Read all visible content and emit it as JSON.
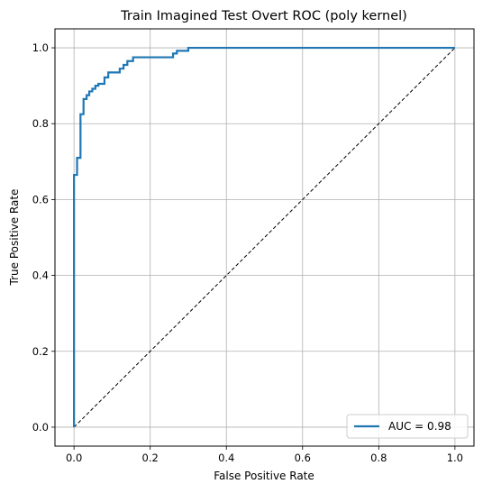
{
  "chart_data": {
    "type": "line",
    "title": "Train Imagined Test Overt ROC (poly kernel)",
    "xlabel": "False Positive Rate",
    "ylabel": "True Positive Rate",
    "xlim": [
      -0.05,
      1.05
    ],
    "ylim": [
      -0.05,
      1.05
    ],
    "xticks": [
      0.0,
      0.2,
      0.4,
      0.6,
      0.8,
      1.0
    ],
    "yticks": [
      0.0,
      0.2,
      0.4,
      0.6,
      0.8,
      1.0
    ],
    "xtick_labels": [
      "0.0",
      "0.2",
      "0.4",
      "0.6",
      "0.8",
      "1.0"
    ],
    "ytick_labels": [
      "0.0",
      "0.2",
      "0.4",
      "0.6",
      "0.8",
      "1.0"
    ],
    "grid": true,
    "legend_position": "bottom-right",
    "series": [
      {
        "name": "AUC = 0.98",
        "color": "#1f77b4",
        "style": "solid",
        "x": [
          0.0,
          0.0,
          0.008,
          0.008,
          0.017,
          0.017,
          0.025,
          0.025,
          0.033,
          0.033,
          0.04,
          0.04,
          0.048,
          0.048,
          0.056,
          0.056,
          0.064,
          0.064,
          0.08,
          0.08,
          0.09,
          0.09,
          0.12,
          0.12,
          0.13,
          0.13,
          0.14,
          0.14,
          0.155,
          0.155,
          0.26,
          0.26,
          0.27,
          0.27,
          0.3,
          0.3,
          1.0
        ],
        "y": [
          0.0,
          0.665,
          0.665,
          0.71,
          0.71,
          0.825,
          0.825,
          0.865,
          0.865,
          0.875,
          0.875,
          0.885,
          0.885,
          0.892,
          0.892,
          0.9,
          0.9,
          0.905,
          0.905,
          0.922,
          0.922,
          0.935,
          0.935,
          0.945,
          0.945,
          0.955,
          0.955,
          0.965,
          0.965,
          0.975,
          0.975,
          0.985,
          0.985,
          0.992,
          0.992,
          1.0,
          1.0
        ]
      },
      {
        "name": "",
        "color": "#000000",
        "style": "dashed",
        "x": [
          0.0,
          1.0
        ],
        "y": [
          0.0,
          1.0
        ]
      }
    ]
  }
}
